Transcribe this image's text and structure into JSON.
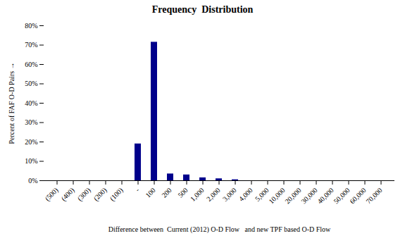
{
  "chart_data": {
    "type": "bar",
    "title": "Frequency  Distribution",
    "xlabel": "Difference between  Current (2012) O-D Flow   and new TPF based O-D Flow",
    "ylabel": "Percent of FAF O-D Pairs",
    "color": "#00008B",
    "categories": [
      "(500)",
      "(400)",
      "(300)",
      "(200)",
      "(100)",
      "-",
      "100",
      "200",
      "500",
      "1,000",
      "2,000",
      "3,000",
      "4,000",
      "5,000",
      "10,000",
      "20,000",
      "30,000",
      "40,000",
      "50,000",
      "60,000",
      "70,000"
    ],
    "values": [
      0,
      0,
      0,
      0,
      0,
      0.19,
      0.715,
      0.035,
      0.03,
      0.015,
      0.01,
      0.005,
      0,
      0,
      0,
      0,
      0,
      0,
      0,
      0,
      0
    ],
    "ylim": [
      0,
      0.8
    ],
    "yticks": [
      {
        "value": 0,
        "label": "0%"
      },
      {
        "value": 0.1,
        "label": "10%"
      },
      {
        "value": 0.2,
        "label": "20%"
      },
      {
        "value": 0.3,
        "label": "30%"
      },
      {
        "value": 0.4,
        "label": "40%"
      },
      {
        "value": 0.5,
        "label": "50%"
      },
      {
        "value": 0.6,
        "label": "60%"
      },
      {
        "value": 0.7,
        "label": "70%"
      },
      {
        "value": 0.8,
        "label": "80%"
      }
    ],
    "grid": false
  }
}
